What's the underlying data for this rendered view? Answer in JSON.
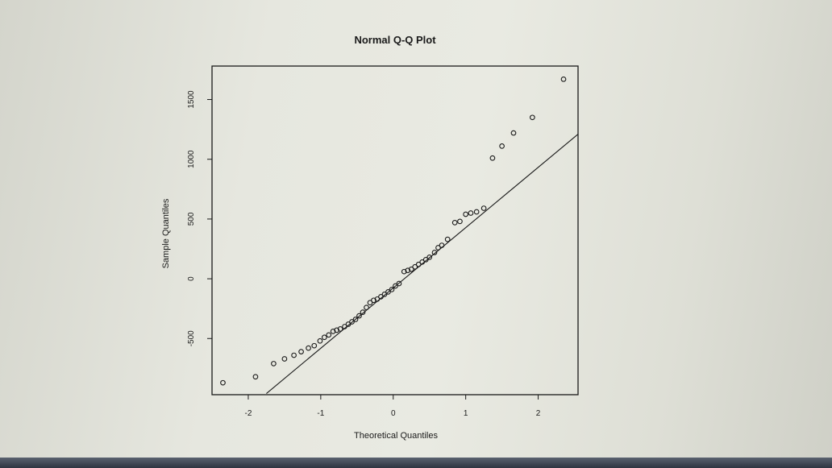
{
  "chart_data": {
    "type": "scatter",
    "title": "Normal Q-Q Plot",
    "xlabel": "Theoretical Quantiles",
    "ylabel": "Sample Quantiles",
    "xlim": [
      -2.5,
      2.55
    ],
    "ylim": [
      -970,
      1780
    ],
    "xticks": [
      -2,
      -1,
      0,
      1,
      2
    ],
    "yticks": [
      -500,
      0,
      500,
      1000,
      1500
    ],
    "xtick_labels": [
      "-2",
      "-1",
      "0",
      "1",
      "2"
    ],
    "ytick_labels": [
      "-500",
      "0",
      "500",
      "1000",
      "1500"
    ],
    "grid": false,
    "reference_line": {
      "x": [
        -1.75,
        2.55
      ],
      "y": [
        -960,
        1210
      ]
    },
    "points": {
      "x": [
        -2.35,
        -1.9,
        -1.65,
        -1.5,
        -1.37,
        -1.27,
        -1.17,
        -1.09,
        -1.01,
        -0.95,
        -0.89,
        -0.83,
        -0.78,
        -0.73,
        -0.67,
        -0.62,
        -0.57,
        -0.52,
        -0.47,
        -0.42,
        -0.37,
        -0.32,
        -0.27,
        -0.22,
        -0.17,
        -0.12,
        -0.07,
        -0.02,
        0.03,
        0.08,
        0.15,
        0.2,
        0.25,
        0.3,
        0.35,
        0.4,
        0.45,
        0.5,
        0.57,
        0.62,
        0.67,
        0.75,
        0.85,
        0.92,
        1.0,
        1.07,
        1.15,
        1.25,
        1.37,
        1.5,
        1.66,
        1.92,
        2.35
      ],
      "y": [
        -870,
        -820,
        -710,
        -670,
        -640,
        -610,
        -580,
        -560,
        -520,
        -490,
        -470,
        -440,
        -430,
        -420,
        -400,
        -380,
        -360,
        -340,
        -310,
        -280,
        -240,
        -200,
        -180,
        -170,
        -150,
        -130,
        -110,
        -90,
        -60,
        -40,
        60,
        70,
        80,
        100,
        120,
        140,
        160,
        180,
        220,
        260,
        280,
        330,
        470,
        480,
        540,
        550,
        560,
        590,
        1010,
        1110,
        1220,
        1350,
        1670
      ]
    }
  }
}
